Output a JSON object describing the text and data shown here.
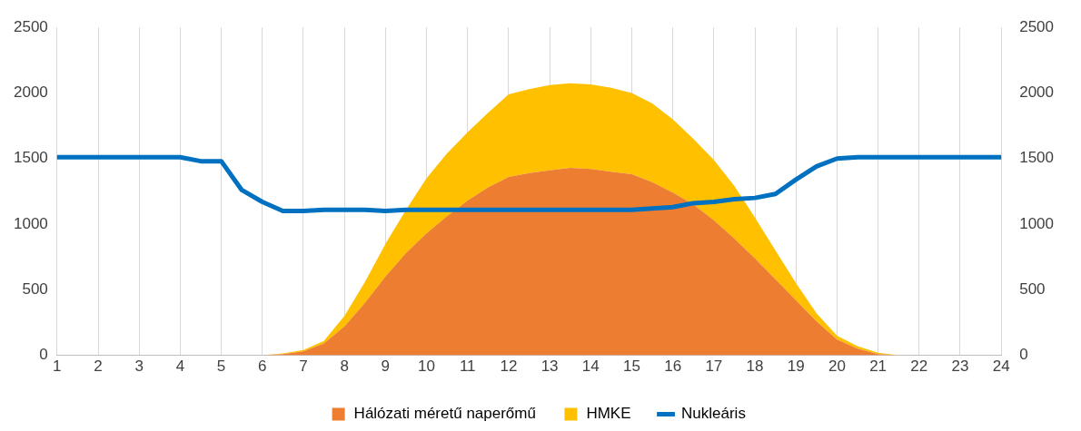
{
  "chart_data": {
    "type": "area",
    "stacked": true,
    "x": [
      1,
      1.5,
      2,
      2.5,
      3,
      3.5,
      4,
      4.5,
      5,
      5.5,
      6,
      6.5,
      7,
      7.5,
      8,
      8.5,
      9,
      9.5,
      10,
      10.5,
      11,
      11.5,
      12,
      12.5,
      13,
      13.5,
      14,
      14.5,
      15,
      15.5,
      16,
      16.5,
      17,
      17.5,
      18,
      18.5,
      19,
      19.5,
      20,
      20.5,
      21,
      21.5,
      22,
      22.5,
      23,
      23.5,
      24
    ],
    "series": [
      {
        "name": "Hálózati méretű naperőmű",
        "color": "#ed7d31",
        "values": [
          0,
          0,
          0,
          0,
          0,
          0,
          0,
          0,
          0,
          0,
          0,
          10,
          30,
          90,
          220,
          400,
          600,
          780,
          930,
          1060,
          1180,
          1280,
          1360,
          1390,
          1410,
          1430,
          1420,
          1400,
          1380,
          1320,
          1240,
          1150,
          1030,
          890,
          740,
          580,
          420,
          260,
          120,
          50,
          10,
          0,
          0,
          0,
          0,
          0,
          0
        ]
      },
      {
        "name": "HMKE",
        "color": "#ffc000",
        "values": [
          0,
          0,
          0,
          0,
          0,
          0,
          0,
          0,
          0,
          0,
          0,
          5,
          10,
          20,
          80,
          160,
          250,
          330,
          420,
          480,
          520,
          570,
          630,
          640,
          650,
          645,
          645,
          640,
          620,
          600,
          560,
          500,
          460,
          400,
          310,
          220,
          130,
          60,
          30,
          20,
          10,
          0,
          0,
          0,
          0,
          0,
          0
        ]
      },
      {
        "name": "Nukleáris",
        "type": "line",
        "color": "#0070c0",
        "values": [
          1510,
          1510,
          1510,
          1510,
          1510,
          1510,
          1510,
          1480,
          1480,
          1260,
          1170,
          1100,
          1100,
          1110,
          1110,
          1110,
          1100,
          1110,
          1110,
          1110,
          1110,
          1110,
          1110,
          1110,
          1110,
          1110,
          1110,
          1110,
          1110,
          1120,
          1130,
          1160,
          1170,
          1190,
          1200,
          1230,
          1340,
          1440,
          1500,
          1510,
          1510,
          1510,
          1510,
          1510,
          1510,
          1510,
          1510
        ]
      }
    ],
    "xlim": [
      1,
      24
    ],
    "xticks": [
      1,
      2,
      3,
      4,
      5,
      6,
      7,
      8,
      9,
      10,
      11,
      12,
      13,
      14,
      15,
      16,
      17,
      18,
      19,
      20,
      21,
      22,
      23,
      24
    ],
    "ylim": [
      0,
      2500
    ],
    "yticks": [
      0,
      500,
      1000,
      1500,
      2000,
      2500
    ],
    "y2lim": [
      0,
      2500
    ],
    "y2ticks": [
      0,
      500,
      1000,
      1500,
      2000,
      2500
    ],
    "grid": "x",
    "legend": "bottom",
    "marker": "none",
    "line_style": "solid"
  }
}
